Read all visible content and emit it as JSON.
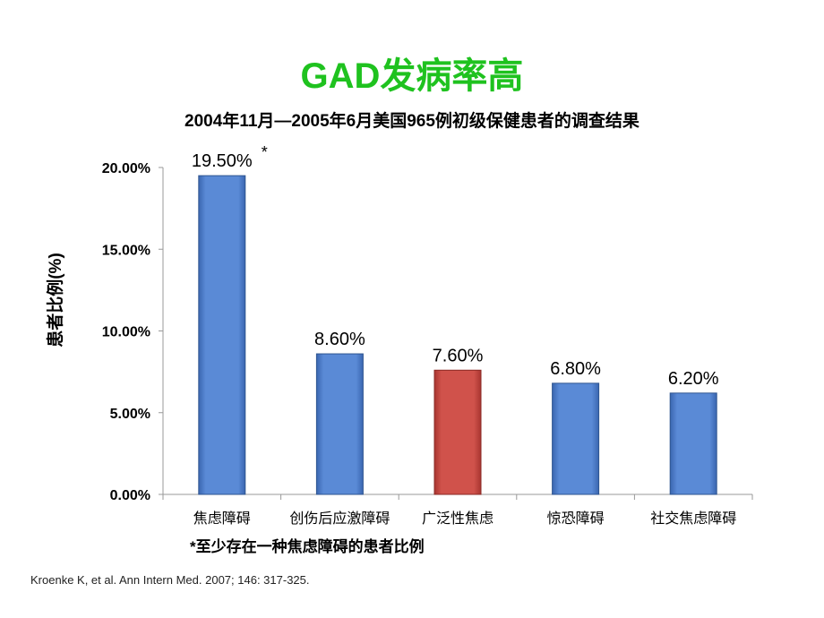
{
  "title": "GAD发病率高",
  "subtitle": "2004年11月—2005年6月美国965例初级保健患者的调查结果",
  "footnote": "*至少存在一种焦虑障碍的患者比例",
  "citation": "Kroenke K, et al. Ann Intern Med. 2007; 146: 317-325.",
  "chart_data": {
    "type": "bar",
    "title": "",
    "xlabel": "",
    "ylabel": "患者比例(%)",
    "ylim": [
      0,
      20
    ],
    "yticks": [
      "0.00%",
      "5.00%",
      "10.00%",
      "15.00%",
      "20.00%"
    ],
    "categories": [
      "焦虑障碍",
      "创伤后应激障碍",
      "广泛性焦虑",
      "惊恐障碍",
      "社交焦虑障碍"
    ],
    "values": [
      19.5,
      8.6,
      7.6,
      6.8,
      6.2
    ],
    "data_labels": [
      "19.50%",
      "8.60%",
      "7.60%",
      "6.80%",
      "6.20%"
    ],
    "annotations": [
      "*"
    ],
    "colors": [
      "#4f7fcf",
      "#4f7fcf",
      "#c9453f",
      "#4f7fcf",
      "#4f7fcf"
    ],
    "grid": false
  }
}
